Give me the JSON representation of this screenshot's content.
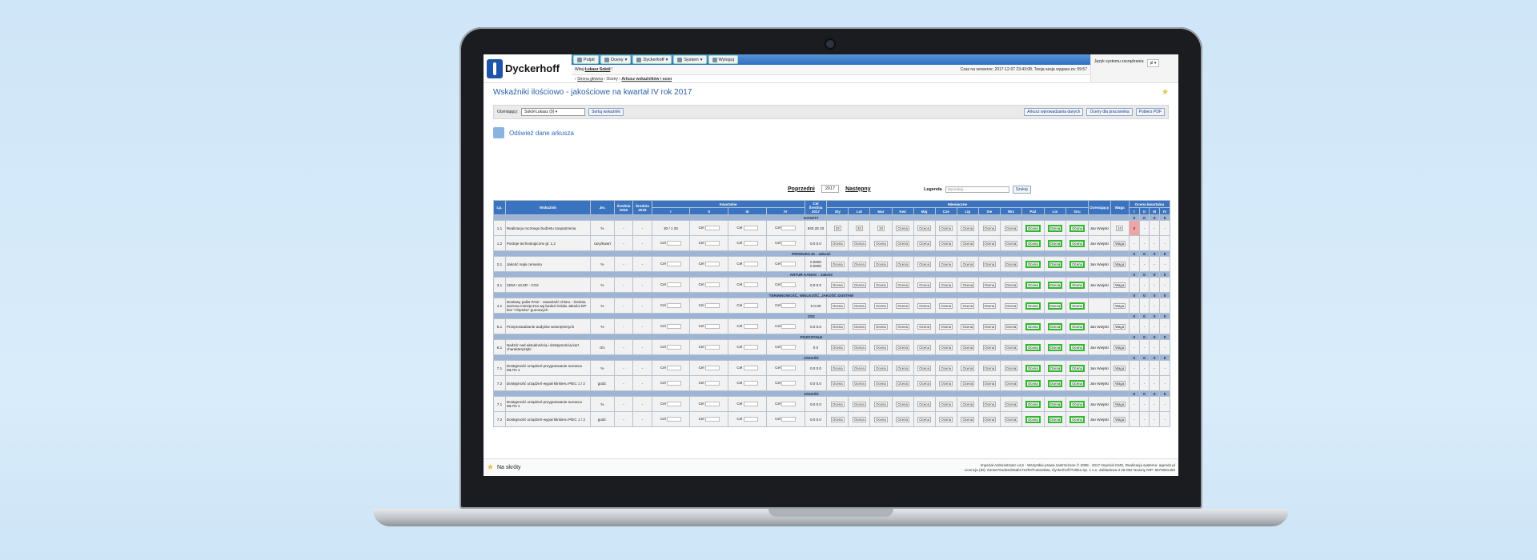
{
  "app": {
    "logo_text": "Dyckerhoff"
  },
  "menu": [
    {
      "label": "Pulpit",
      "icon": "desktop-icon"
    },
    {
      "label": "Oceny",
      "icon": "grades-icon"
    },
    {
      "label": "Dyckerhoff",
      "icon": "dyckerhoff-icon"
    },
    {
      "label": "System",
      "icon": "system-icon"
    },
    {
      "label": "Wyloguj",
      "icon": "logout-icon"
    }
  ],
  "user": {
    "greeting_prefix": "Witaj",
    "name": "Łukasz Sokół",
    "greeting_suffix": "!",
    "session": "Czas na serwerze: 2017-12-07 23:43:08, Twoja sesja wygasa za: 59:57"
  },
  "breadcrumbs": [
    "Strona główna",
    "Oceny",
    "Arkusz wskaźników / ocen"
  ],
  "lang": {
    "label": "Język systemu zarządzania:",
    "value": "pl"
  },
  "page": {
    "title": "Wskaźniki ilościowo - jakościowe na kwartał IV rok 2017"
  },
  "filter": {
    "label": "Oceniający:",
    "value": "Sokół Łukasz (9)",
    "sort_btn": "Sortuj wskaźniki",
    "btn1": "Arkusz wprowadzania danych",
    "btn2": "Oceny dla pracownika",
    "btn3": "Pobierz PDF"
  },
  "refresh": {
    "label": "Odśwież dane arkusza"
  },
  "nav": {
    "prev": "Poprzedni",
    "year": "2017",
    "next": "Następny"
  },
  "legend": {
    "label": "Legenda",
    "placeholder": "Wyszukaj...",
    "search_btn": "Szukaj"
  },
  "headers": {
    "lp": "Lp.",
    "indicator": "Wskaźnik",
    "unit": "Jm.",
    "avg2015": "Średnia 2015",
    "avg2016": "Średnia 2016",
    "quarterly": "Kwartalne",
    "q": [
      "I",
      "II",
      "III",
      "IV"
    ],
    "target": "Cel Średnia 2017",
    "monthly": "Miesięczne",
    "months": [
      "Sty",
      "Lut",
      "Mar",
      "Kwi",
      "Maj",
      "Cze",
      "Lip",
      "Sie",
      "Wrz",
      "Paź",
      "Lis",
      "Gru"
    ],
    "rater": "Oceniający",
    "weight": "Waga",
    "qgrade": "Ocena kwartalna"
  },
  "cell": {
    "cel": "Cel",
    "ocena": "Ocena",
    "waga": "Waga",
    "dash": "-",
    "zero": "0"
  },
  "sections": [
    {
      "title": "KOSZTY",
      "rows": [
        {
          "lp": "1.1",
          "name": "Realizacja rocznego budżetu zaopatrzenia",
          "unit": "%",
          "a15": "-",
          "a16": "-",
          "target": "840.25 33",
          "q1": "30 / 1 33",
          "months": [
            "33",
            "33",
            "33"
          ],
          "rater": "Jan Wiejski",
          "waga": "10",
          "grade": "8"
        },
        {
          "lp": "1.2",
          "name": "Postoje technologiczne gł. 1,2",
          "unit": "razy/kwart",
          "a15": "-",
          "a16": "-",
          "target": "0.0 0.0",
          "q1": "",
          "months": [],
          "rater": "Jan Wiejski",
          "waga": "Waga",
          "grade": "-"
        }
      ]
    },
    {
      "title": "PRODUKCJA - Jakość",
      "rows": [
        {
          "lp": "2.1",
          "name": "Jakość mąki cementu",
          "unit": "%",
          "a15": "-",
          "a16": "-",
          "target": "0.0000 0.0000",
          "q1": "",
          "months": [],
          "rater": "Jan Wiejski",
          "waga": "Waga",
          "grade": "-"
        }
      ]
    },
    {
      "title": "ARTUR KANAK - Jakość",
      "rows": [
        {
          "lp": "3.1",
          "name": "CEM I 42,5R - CO2",
          "unit": "%",
          "a15": "-",
          "a16": "-",
          "target": "0.0 0.0",
          "q1": "",
          "months": [],
          "rater": "Jan Wiejski",
          "waga": "Waga",
          "grade": "-"
        }
      ]
    },
    {
      "title": "TERMINOWOŚĆ, WIELKOŚĆ, JAKOŚĆ DOSTAW",
      "rows": [
        {
          "lp": "4.1",
          "name": "Dostawy paliw PASr - zawartość chloru - średnia ważona miesięczna wg badań Działu Jakości DP bez \"chipsów\" gumowych",
          "unit": "%",
          "a15": "-",
          "a16": "-",
          "target": "0 0.00",
          "q1": "",
          "months": [],
          "rater": "",
          "waga": "Waga",
          "grade": "-"
        }
      ]
    },
    {
      "title": "ZSZ",
      "rows": [
        {
          "lp": "5.1",
          "name": "Przeprowadzanie audytów wewnętrznych",
          "unit": "%",
          "a15": "-",
          "a16": "-",
          "target": "0.0 0.0",
          "q1": "",
          "months": [],
          "rater": "Jan Wiejski",
          "waga": "Waga",
          "grade": "-"
        }
      ]
    },
    {
      "title": "POZOSTAŁE",
      "rows": [
        {
          "lp": "6.1",
          "name": "Nadzór nad aktualnością i dostępnością kart charakterystyki",
          "unit": "0/1",
          "a15": "-",
          "a16": "-",
          "target": "0 0",
          "q1": "",
          "months": [],
          "rater": "Jan Wiejski",
          "waga": "Waga",
          "grade": "-"
        }
      ]
    },
    {
      "title": "JAKOŚĆ",
      "rows": [
        {
          "lp": "7.1",
          "name": "Dostępność urządzeń-przygotowanie surowca MŁYN 1",
          "unit": "%",
          "a15": "-",
          "a16": "-",
          "target": "0.0 0.0",
          "q1": "",
          "months": [],
          "rater": "Jan Wiejski",
          "waga": "Waga",
          "grade": "-"
        },
        {
          "lp": "7.2",
          "name": "Dostępność urządzeń-wypał klinkieru PIEC 1 / 2",
          "unit": "godz.",
          "a15": "-",
          "a16": "-",
          "target": "0.0 0.0",
          "q1": "",
          "months": [],
          "rater": "Jan Wiejski",
          "waga": "Waga",
          "grade": "-"
        }
      ]
    },
    {
      "title": "JAKOŚĆ",
      "rows": [
        {
          "lp": "7.1",
          "name": "Dostępność urządzeń-przygotowanie surowca MŁYN 1",
          "unit": "%",
          "a15": "-",
          "a16": "-",
          "target": "0.0 0.0",
          "q1": "",
          "months": [],
          "rater": "Jan Wiejski",
          "waga": "Waga",
          "grade": "-"
        },
        {
          "lp": "7.2",
          "name": "Dostępność urządzeń-wypał klinkieru PIEC 1 / 2",
          "unit": "godz.",
          "a15": "-",
          "a16": "-",
          "target": "0.0 0.0",
          "q1": "",
          "months": [],
          "rater": "Jan Wiejski",
          "waga": "Waga",
          "grade": "-"
        }
      ]
    }
  ],
  "footer": {
    "shortcuts": "Na skróty",
    "line1": "Imperial Administrator v4.6 - Wszystkie prawa zastrzeżone © 2008 - 2017 Imperial CMS, Realizacja systemu: agendo.pl",
    "line2": "Licencja (ID): 64c5e761d02d36abc7e2f07fca54eb8a, Dyckerhoff Polska Sp. z o.o. Zakładowa 3 26-052 Nowiny NIP: 6570081493"
  }
}
